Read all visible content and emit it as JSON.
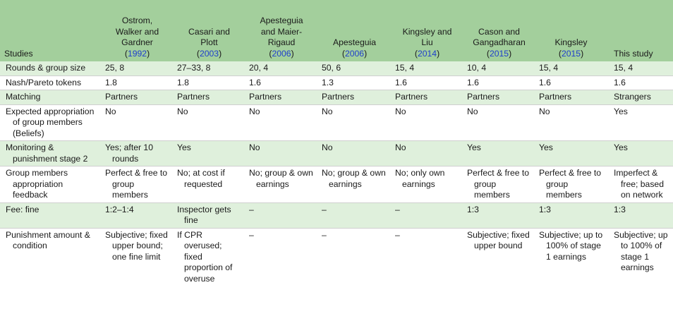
{
  "columns": [
    {
      "lines": [
        "Studies"
      ],
      "year": ""
    },
    {
      "lines": [
        "Ostrom,",
        "Walker and",
        "Gardner"
      ],
      "year": "1992"
    },
    {
      "lines": [
        "Casari and",
        "Plott"
      ],
      "year": "2003"
    },
    {
      "lines": [
        "Apesteguia",
        "and Maier-",
        "Rigaud"
      ],
      "year": "2006"
    },
    {
      "lines": [
        "Apesteguia"
      ],
      "year": "2006"
    },
    {
      "lines": [
        "Kingsley and",
        "Liu"
      ],
      "year": "2014"
    },
    {
      "lines": [
        "Cason and",
        "Gangadharan"
      ],
      "year": "2015"
    },
    {
      "lines": [
        "Kingsley"
      ],
      "year": "2015"
    },
    {
      "lines": [
        "This study"
      ],
      "year": ""
    }
  ],
  "rows": [
    {
      "label": "Rounds & group size",
      "cells": [
        "25, 8",
        "27–33, 8",
        "20, 4",
        "50, 6",
        "15, 4",
        "10, 4",
        "15, 4",
        "15, 4"
      ]
    },
    {
      "label": "Nash/Pareto tokens",
      "cells": [
        "1.8",
        "1.8",
        "1.6",
        "1.3",
        "1.6",
        "1.6",
        "1.6",
        "1.6"
      ]
    },
    {
      "label": "Matching",
      "cells": [
        "Partners",
        "Partners",
        "Partners",
        "Partners",
        "Partners",
        "Partners",
        "Partners",
        "Strangers"
      ]
    },
    {
      "label": "Expected appropriation of group members (Beliefs)",
      "cells": [
        "No",
        "No",
        "No",
        "No",
        "No",
        "No",
        "No",
        "Yes"
      ]
    },
    {
      "label": "Monitoring & punishment stage 2",
      "cells": [
        "Yes; after 10 rounds",
        "Yes",
        "No",
        "No",
        "No",
        "Yes",
        "Yes",
        "Yes"
      ]
    },
    {
      "label": "Group members appropriation feedback",
      "cells": [
        "Perfect & free to group members",
        "No; at cost if requested",
        "No; group & own earnings",
        "No; group & own earnings",
        "No; only own earnings",
        "Perfect & free to group members",
        "Perfect & free to group members",
        "Imperfect & free; based on network"
      ]
    },
    {
      "label": "Fee: fine",
      "cells": [
        "1:2–1:4",
        "Inspector gets fine",
        "–",
        "–",
        "–",
        "1:3",
        "1:3",
        "1:3"
      ]
    },
    {
      "label": "Punishment amount & condition",
      "cells": [
        "Subjective; fixed upper bound; one fine limit",
        "If CPR overused; fixed proportion of overuse",
        "–",
        "–",
        "–",
        "Subjective; fixed upper bound",
        "Subjective; up to 100% of stage 1 earnings",
        "Subjective; up to 100% of stage 1 earnings"
      ]
    }
  ]
}
